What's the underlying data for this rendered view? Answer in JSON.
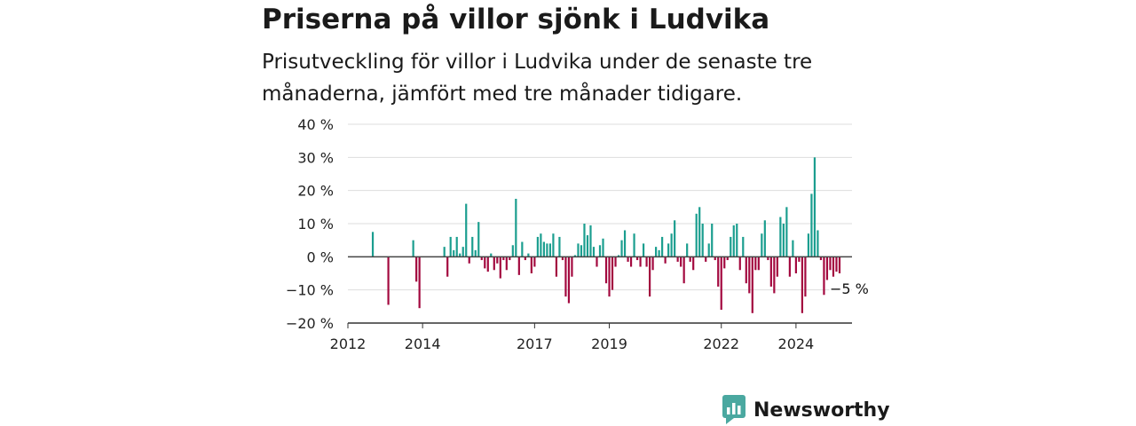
{
  "title": "Priserna på villor sjönk i Ludvika",
  "subtitle": "Prisutveckling för villor i Ludvika under de senaste tre månaderna, jämfört med tre månader tidigare.",
  "brand": {
    "name": "Newsworthy",
    "color": "#4aa8a0",
    "icon": "bar-chart-speech-bubble-icon"
  },
  "chart_data": {
    "type": "bar",
    "x_axis": {
      "type": "time",
      "range": [
        "2012-01",
        "2025-07"
      ],
      "tick_labels": [
        "2012",
        "2014",
        "2017",
        "2019",
        "2022",
        "2024"
      ]
    },
    "y_axis": {
      "range": [
        -20,
        40
      ],
      "tick_values": [
        -20,
        -10,
        0,
        10,
        20,
        30,
        40
      ],
      "tick_labels": [
        "−20 %",
        "−10 %",
        "0 %",
        "10 %",
        "20 %",
        "30 %",
        "40 %"
      ],
      "unit": "%"
    },
    "grid": true,
    "colors": {
      "positive": "#1b9e8f",
      "negative": "#a3093f",
      "grid": "#dddddd",
      "zero_line": "#444444"
    },
    "annotation": {
      "text": "−5 %",
      "x": "2025-03",
      "y": -5
    },
    "series": [
      {
        "x": [
          "2012-09",
          "2013-02",
          "2013-10",
          "2013-11",
          "2013-12",
          "2014-08",
          "2014-09",
          "2014-10",
          "2014-11",
          "2014-12",
          "2015-01",
          "2015-02",
          "2015-03",
          "2015-04",
          "2015-05",
          "2015-06",
          "2015-07",
          "2015-08",
          "2015-09",
          "2015-10",
          "2015-11",
          "2015-12",
          "2016-01",
          "2016-02",
          "2016-03",
          "2016-04",
          "2016-05",
          "2016-06",
          "2016-07",
          "2016-08",
          "2016-09",
          "2016-10",
          "2016-11",
          "2016-12",
          "2017-01",
          "2017-02",
          "2017-03",
          "2017-04",
          "2017-05",
          "2017-06",
          "2017-07",
          "2017-08",
          "2017-09",
          "2017-10",
          "2017-11",
          "2017-12",
          "2018-01",
          "2018-02",
          "2018-03",
          "2018-04",
          "2018-05",
          "2018-06",
          "2018-07",
          "2018-08",
          "2018-09",
          "2018-10",
          "2018-11",
          "2018-12",
          "2019-01",
          "2019-02",
          "2019-03",
          "2019-04",
          "2019-05",
          "2019-06",
          "2019-07",
          "2019-08",
          "2019-09",
          "2019-10",
          "2019-11",
          "2019-12",
          "2020-01",
          "2020-02",
          "2020-03",
          "2020-04",
          "2020-05",
          "2020-06",
          "2020-07",
          "2020-08",
          "2020-09",
          "2020-10",
          "2020-11",
          "2020-12",
          "2021-01",
          "2021-02",
          "2021-03",
          "2021-04",
          "2021-05",
          "2021-06",
          "2021-07",
          "2021-08",
          "2021-09",
          "2021-10",
          "2021-11",
          "2021-12",
          "2022-01",
          "2022-02",
          "2022-03",
          "2022-04",
          "2022-05",
          "2022-06",
          "2022-07",
          "2022-08",
          "2022-09",
          "2022-10",
          "2022-11",
          "2022-12",
          "2023-01",
          "2023-02",
          "2023-03",
          "2023-04",
          "2023-05",
          "2023-06",
          "2023-07",
          "2023-08",
          "2023-09",
          "2023-10",
          "2023-11",
          "2023-12",
          "2024-01",
          "2024-02",
          "2024-03",
          "2024-04",
          "2024-05",
          "2024-06",
          "2024-07",
          "2024-08",
          "2024-09",
          "2024-10",
          "2024-11",
          "2024-12",
          "2025-01",
          "2025-02",
          "2025-03"
        ],
        "values": [
          7.5,
          -14.5,
          5,
          -7.5,
          -15.5,
          3,
          -6,
          6,
          2,
          6,
          1,
          3,
          16,
          -2,
          6,
          2,
          10.5,
          -1,
          -3.5,
          -4.5,
          1,
          -4,
          -2,
          -6.5,
          -1,
          -4,
          -1,
          3.5,
          17.5,
          -5.5,
          4.5,
          -1,
          1,
          -5,
          -3,
          6,
          7,
          4.5,
          4,
          4,
          7,
          -6,
          6,
          -1,
          -12,
          -14,
          -6,
          0.5,
          4,
          3.5,
          10,
          6.5,
          9.5,
          3,
          -3,
          3.5,
          5.5,
          -8,
          -12,
          -10,
          -3,
          0.5,
          5,
          8,
          -1.5,
          -3,
          7,
          -1,
          -3,
          4,
          -3,
          -12,
          -4,
          3,
          2,
          6,
          -2,
          4,
          7,
          11,
          -1.5,
          -3,
          -8,
          4,
          -1.5,
          -4,
          13,
          15,
          10,
          -1.5,
          4,
          10,
          -1,
          -9,
          -16,
          -3.5,
          -1,
          6,
          9.5,
          10,
          -4,
          6,
          -8,
          -11,
          -17,
          -4,
          -4,
          7,
          11,
          -1,
          -9,
          -11,
          -6,
          12,
          10,
          15,
          -6,
          5,
          -5,
          -1.5,
          -17,
          -12,
          7,
          19,
          30,
          8,
          -1,
          -11.5,
          -7,
          -4,
          -6,
          -4.5,
          -5
        ]
      }
    ]
  }
}
